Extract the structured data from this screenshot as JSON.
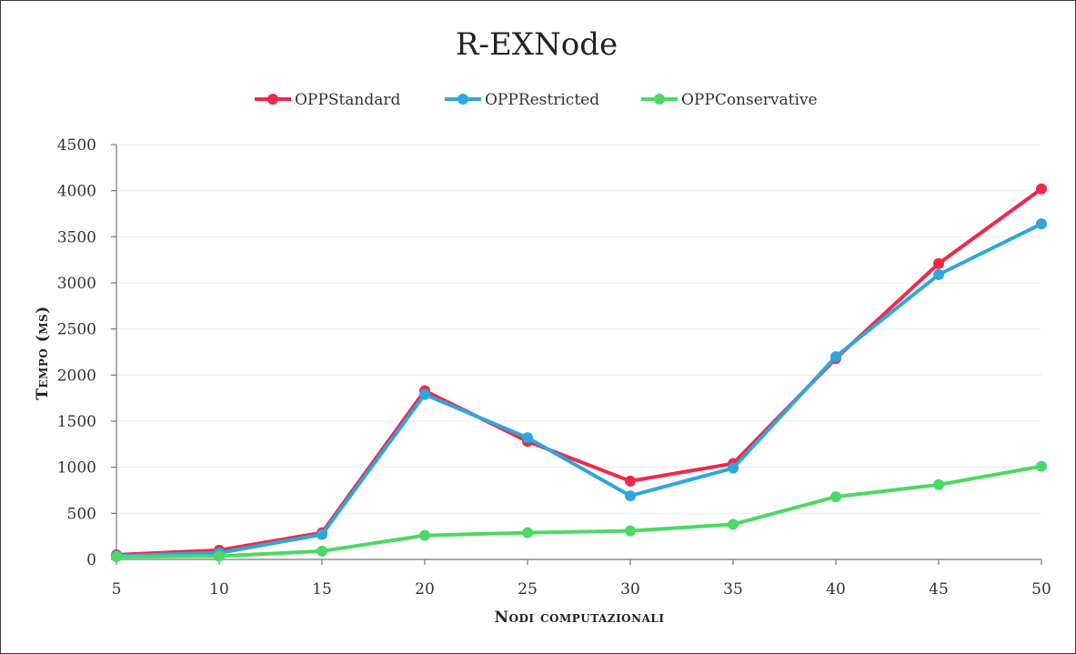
{
  "chart_data": {
    "type": "line",
    "title": "R-EXNode",
    "xlabel": "Nodi computazionali",
    "ylabel": "Tempo (ms)",
    "x": [
      5,
      10,
      15,
      20,
      25,
      30,
      35,
      40,
      45,
      50
    ],
    "ylim": [
      0,
      4500
    ],
    "yticks": [
      0,
      500,
      1000,
      1500,
      2000,
      2500,
      3000,
      3500,
      4000,
      4500
    ],
    "grid": true,
    "legend_position": "top",
    "series": [
      {
        "name": "OPPStandard",
        "color": "#f0284a",
        "values": [
          50,
          100,
          290,
          1830,
          1280,
          850,
          1040,
          2180,
          3210,
          4020
        ]
      },
      {
        "name": "OPPRestricted",
        "color": "#2fa6dc",
        "values": [
          40,
          70,
          270,
          1790,
          1320,
          690,
          990,
          2200,
          3090,
          3640
        ]
      },
      {
        "name": "OPPConservative",
        "color": "#4cd964",
        "values": [
          30,
          35,
          90,
          260,
          290,
          310,
          380,
          680,
          810,
          1010
        ]
      }
    ]
  }
}
